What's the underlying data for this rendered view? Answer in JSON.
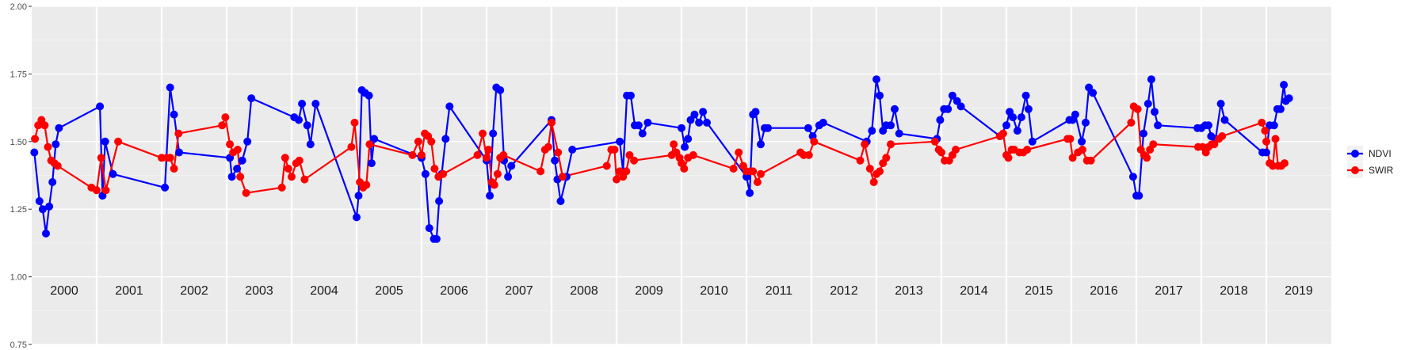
{
  "chart_data": {
    "type": "line",
    "title": "",
    "xlabel": "",
    "ylabel": "",
    "ylim": [
      0.75,
      2.0
    ],
    "yticks": [
      "0.75",
      "1.00",
      "1.25",
      "1.50",
      "1.75",
      "2.00"
    ],
    "xlim": [
      2000,
      2020
    ],
    "year_labels": [
      "2000",
      "2001",
      "2002",
      "2003",
      "2004",
      "2005",
      "2006",
      "2007",
      "2008",
      "2009",
      "2010",
      "2011",
      "2012",
      "2013",
      "2014",
      "2015",
      "2016",
      "2017",
      "2018",
      "2019"
    ],
    "grid": true,
    "legend_position": "right",
    "series": [
      {
        "name": "NDVI",
        "color": "#0000ff",
        "points": [
          [
            2000.04,
            1.46
          ],
          [
            2000.12,
            1.28
          ],
          [
            2000.17,
            1.25
          ],
          [
            2000.22,
            1.16
          ],
          [
            2000.27,
            1.26
          ],
          [
            2000.32,
            1.35
          ],
          [
            2000.37,
            1.49
          ],
          [
            2000.42,
            1.55
          ],
          [
            2001.05,
            1.63
          ],
          [
            2001.09,
            1.3
          ],
          [
            2001.13,
            1.5
          ],
          [
            2001.25,
            1.38
          ],
          [
            2002.05,
            1.33
          ],
          [
            2002.13,
            1.7
          ],
          [
            2002.19,
            1.6
          ],
          [
            2002.27,
            1.46
          ],
          [
            2003.05,
            1.44
          ],
          [
            2003.08,
            1.37
          ],
          [
            2003.16,
            1.4
          ],
          [
            2003.24,
            1.43
          ],
          [
            2003.32,
            1.5
          ],
          [
            2003.38,
            1.66
          ],
          [
            2004.04,
            1.59
          ],
          [
            2004.11,
            1.58
          ],
          [
            2004.16,
            1.64
          ],
          [
            2004.24,
            1.56
          ],
          [
            2004.29,
            1.49
          ],
          [
            2004.37,
            1.64
          ],
          [
            2005.0,
            1.22
          ],
          [
            2005.03,
            1.3
          ],
          [
            2005.08,
            1.69
          ],
          [
            2005.13,
            1.68
          ],
          [
            2005.19,
            1.67
          ],
          [
            2005.23,
            1.42
          ],
          [
            2005.27,
            1.51
          ],
          [
            2006.0,
            1.44
          ],
          [
            2006.06,
            1.38
          ],
          [
            2006.12,
            1.18
          ],
          [
            2006.19,
            1.14
          ],
          [
            2006.23,
            1.14
          ],
          [
            2006.27,
            1.28
          ],
          [
            2006.31,
            1.38
          ],
          [
            2006.37,
            1.51
          ],
          [
            2006.43,
            1.63
          ],
          [
            2007.0,
            1.43
          ],
          [
            2007.05,
            1.3
          ],
          [
            2007.1,
            1.53
          ],
          [
            2007.15,
            1.7
          ],
          [
            2007.21,
            1.69
          ],
          [
            2007.27,
            1.43
          ],
          [
            2007.33,
            1.37
          ],
          [
            2007.38,
            1.41
          ],
          [
            2008.0,
            1.58
          ],
          [
            2008.05,
            1.43
          ],
          [
            2008.09,
            1.36
          ],
          [
            2008.14,
            1.28
          ],
          [
            2008.23,
            1.37
          ],
          [
            2008.32,
            1.47
          ],
          [
            2009.05,
            1.5
          ],
          [
            2009.1,
            1.39
          ],
          [
            2009.16,
            1.67
          ],
          [
            2009.22,
            1.67
          ],
          [
            2009.28,
            1.56
          ],
          [
            2009.34,
            1.56
          ],
          [
            2009.4,
            1.53
          ],
          [
            2009.48,
            1.57
          ],
          [
            2010.0,
            1.55
          ],
          [
            2010.05,
            1.48
          ],
          [
            2010.1,
            1.51
          ],
          [
            2010.14,
            1.58
          ],
          [
            2010.2,
            1.6
          ],
          [
            2010.27,
            1.57
          ],
          [
            2010.33,
            1.61
          ],
          [
            2010.39,
            1.57
          ],
          [
            2011.0,
            1.37
          ],
          [
            2011.05,
            1.31
          ],
          [
            2011.1,
            1.6
          ],
          [
            2011.14,
            1.61
          ],
          [
            2011.22,
            1.49
          ],
          [
            2011.28,
            1.55
          ],
          [
            2011.33,
            1.55
          ],
          [
            2011.95,
            1.55
          ],
          [
            2012.02,
            1.52
          ],
          [
            2012.12,
            1.56
          ],
          [
            2012.18,
            1.57
          ],
          [
            2012.85,
            1.5
          ],
          [
            2012.93,
            1.54
          ],
          [
            2013.0,
            1.73
          ],
          [
            2013.05,
            1.67
          ],
          [
            2013.1,
            1.54
          ],
          [
            2013.15,
            1.56
          ],
          [
            2013.22,
            1.56
          ],
          [
            2013.28,
            1.62
          ],
          [
            2013.35,
            1.53
          ],
          [
            2013.93,
            1.51
          ],
          [
            2013.98,
            1.58
          ],
          [
            2014.04,
            1.62
          ],
          [
            2014.1,
            1.62
          ],
          [
            2014.17,
            1.67
          ],
          [
            2014.24,
            1.65
          ],
          [
            2014.3,
            1.63
          ],
          [
            2014.9,
            1.52
          ],
          [
            2015.0,
            1.56
          ],
          [
            2015.05,
            1.61
          ],
          [
            2015.1,
            1.59
          ],
          [
            2015.17,
            1.54
          ],
          [
            2015.23,
            1.59
          ],
          [
            2015.3,
            1.67
          ],
          [
            2015.34,
            1.62
          ],
          [
            2015.4,
            1.5
          ],
          [
            2015.97,
            1.58
          ],
          [
            2016.02,
            1.58
          ],
          [
            2016.06,
            1.6
          ],
          [
            2016.16,
            1.5
          ],
          [
            2016.22,
            1.57
          ],
          [
            2016.27,
            1.7
          ],
          [
            2016.33,
            1.68
          ],
          [
            2016.95,
            1.37
          ],
          [
            2017.0,
            1.3
          ],
          [
            2017.04,
            1.3
          ],
          [
            2017.11,
            1.53
          ],
          [
            2017.18,
            1.64
          ],
          [
            2017.23,
            1.73
          ],
          [
            2017.28,
            1.61
          ],
          [
            2017.33,
            1.56
          ],
          [
            2017.94,
            1.55
          ],
          [
            2018.0,
            1.55
          ],
          [
            2018.06,
            1.56
          ],
          [
            2018.11,
            1.56
          ],
          [
            2018.15,
            1.52
          ],
          [
            2018.22,
            1.51
          ],
          [
            2018.3,
            1.64
          ],
          [
            2018.36,
            1.58
          ],
          [
            2018.94,
            1.46
          ],
          [
            2019.0,
            1.46
          ],
          [
            2019.05,
            1.56
          ],
          [
            2019.12,
            1.56
          ],
          [
            2019.17,
            1.62
          ],
          [
            2019.22,
            1.62
          ],
          [
            2019.27,
            1.71
          ],
          [
            2019.3,
            1.65
          ],
          [
            2019.35,
            1.66
          ]
        ]
      },
      {
        "name": "SWIR",
        "color": "#ff0000",
        "points": [
          [
            2000.05,
            1.51
          ],
          [
            2000.1,
            1.56
          ],
          [
            2000.15,
            1.58
          ],
          [
            2000.2,
            1.56
          ],
          [
            2000.25,
            1.48
          ],
          [
            2000.3,
            1.43
          ],
          [
            2000.35,
            1.42
          ],
          [
            2000.4,
            1.41
          ],
          [
            2000.92,
            1.33
          ],
          [
            2001.0,
            1.32
          ],
          [
            2001.07,
            1.44
          ],
          [
            2001.14,
            1.32
          ],
          [
            2001.33,
            1.5
          ],
          [
            2002.0,
            1.44
          ],
          [
            2002.08,
            1.44
          ],
          [
            2002.13,
            1.44
          ],
          [
            2002.19,
            1.4
          ],
          [
            2002.26,
            1.53
          ],
          [
            2002.93,
            1.56
          ],
          [
            2002.98,
            1.59
          ],
          [
            2003.05,
            1.49
          ],
          [
            2003.1,
            1.46
          ],
          [
            2003.17,
            1.47
          ],
          [
            2003.21,
            1.37
          ],
          [
            2003.3,
            1.31
          ],
          [
            2003.85,
            1.33
          ],
          [
            2003.9,
            1.44
          ],
          [
            2003.95,
            1.4
          ],
          [
            2004.0,
            1.37
          ],
          [
            2004.07,
            1.42
          ],
          [
            2004.12,
            1.43
          ],
          [
            2004.2,
            1.36
          ],
          [
            2004.92,
            1.48
          ],
          [
            2004.97,
            1.57
          ],
          [
            2005.05,
            1.35
          ],
          [
            2005.1,
            1.33
          ],
          [
            2005.15,
            1.34
          ],
          [
            2005.2,
            1.49
          ],
          [
            2005.86,
            1.45
          ],
          [
            2005.95,
            1.5
          ],
          [
            2006.0,
            1.45
          ],
          [
            2006.05,
            1.53
          ],
          [
            2006.1,
            1.52
          ],
          [
            2006.15,
            1.5
          ],
          [
            2006.2,
            1.4
          ],
          [
            2006.26,
            1.37
          ],
          [
            2006.33,
            1.38
          ],
          [
            2006.86,
            1.45
          ],
          [
            2006.94,
            1.53
          ],
          [
            2007.0,
            1.44
          ],
          [
            2007.03,
            1.47
          ],
          [
            2007.08,
            1.35
          ],
          [
            2007.12,
            1.34
          ],
          [
            2007.17,
            1.38
          ],
          [
            2007.21,
            1.44
          ],
          [
            2007.26,
            1.45
          ],
          [
            2007.83,
            1.39
          ],
          [
            2007.9,
            1.47
          ],
          [
            2007.95,
            1.48
          ],
          [
            2008.0,
            1.57
          ],
          [
            2008.1,
            1.46
          ],
          [
            2008.17,
            1.37
          ],
          [
            2008.85,
            1.41
          ],
          [
            2008.92,
            1.47
          ],
          [
            2008.97,
            1.47
          ],
          [
            2009.0,
            1.36
          ],
          [
            2009.05,
            1.39
          ],
          [
            2009.1,
            1.37
          ],
          [
            2009.15,
            1.39
          ],
          [
            2009.2,
            1.45
          ],
          [
            2009.27,
            1.43
          ],
          [
            2009.85,
            1.45
          ],
          [
            2009.88,
            1.49
          ],
          [
            2009.92,
            1.46
          ],
          [
            2009.97,
            1.44
          ],
          [
            2010.0,
            1.42
          ],
          [
            2010.04,
            1.4
          ],
          [
            2010.1,
            1.44
          ],
          [
            2010.18,
            1.45
          ],
          [
            2010.8,
            1.4
          ],
          [
            2010.88,
            1.46
          ],
          [
            2010.95,
            1.41
          ],
          [
            2011.0,
            1.39
          ],
          [
            2011.06,
            1.39
          ],
          [
            2011.1,
            1.39
          ],
          [
            2011.17,
            1.35
          ],
          [
            2011.22,
            1.38
          ],
          [
            2011.83,
            1.46
          ],
          [
            2011.88,
            1.45
          ],
          [
            2011.96,
            1.45
          ],
          [
            2012.04,
            1.5
          ],
          [
            2012.75,
            1.43
          ],
          [
            2012.82,
            1.49
          ],
          [
            2012.9,
            1.4
          ],
          [
            2012.96,
            1.35
          ],
          [
            2013.0,
            1.38
          ],
          [
            2013.05,
            1.39
          ],
          [
            2013.1,
            1.42
          ],
          [
            2013.15,
            1.44
          ],
          [
            2013.22,
            1.49
          ],
          [
            2013.9,
            1.5
          ],
          [
            2013.96,
            1.47
          ],
          [
            2014.0,
            1.46
          ],
          [
            2014.05,
            1.43
          ],
          [
            2014.12,
            1.43
          ],
          [
            2014.17,
            1.45
          ],
          [
            2014.22,
            1.47
          ],
          [
            2014.9,
            1.52
          ],
          [
            2014.95,
            1.53
          ],
          [
            2015.0,
            1.45
          ],
          [
            2015.03,
            1.44
          ],
          [
            2015.08,
            1.47
          ],
          [
            2015.12,
            1.47
          ],
          [
            2015.2,
            1.46
          ],
          [
            2015.26,
            1.46
          ],
          [
            2015.32,
            1.47
          ],
          [
            2015.94,
            1.51
          ],
          [
            2015.98,
            1.51
          ],
          [
            2016.02,
            1.44
          ],
          [
            2016.1,
            1.46
          ],
          [
            2016.17,
            1.47
          ],
          [
            2016.24,
            1.43
          ],
          [
            2016.3,
            1.43
          ],
          [
            2016.92,
            1.57
          ],
          [
            2016.96,
            1.63
          ],
          [
            2017.02,
            1.62
          ],
          [
            2017.07,
            1.47
          ],
          [
            2017.12,
            1.45
          ],
          [
            2017.16,
            1.44
          ],
          [
            2017.21,
            1.47
          ],
          [
            2017.26,
            1.49
          ],
          [
            2017.95,
            1.48
          ],
          [
            2018.02,
            1.48
          ],
          [
            2018.07,
            1.46
          ],
          [
            2018.11,
            1.48
          ],
          [
            2018.16,
            1.49
          ],
          [
            2018.2,
            1.49
          ],
          [
            2018.27,
            1.51
          ],
          [
            2018.32,
            1.52
          ],
          [
            2018.93,
            1.57
          ],
          [
            2018.98,
            1.54
          ],
          [
            2019.0,
            1.5
          ],
          [
            2019.05,
            1.42
          ],
          [
            2019.1,
            1.41
          ],
          [
            2019.14,
            1.51
          ],
          [
            2019.18,
            1.41
          ],
          [
            2019.23,
            1.41
          ],
          [
            2019.28,
            1.42
          ]
        ]
      }
    ]
  }
}
